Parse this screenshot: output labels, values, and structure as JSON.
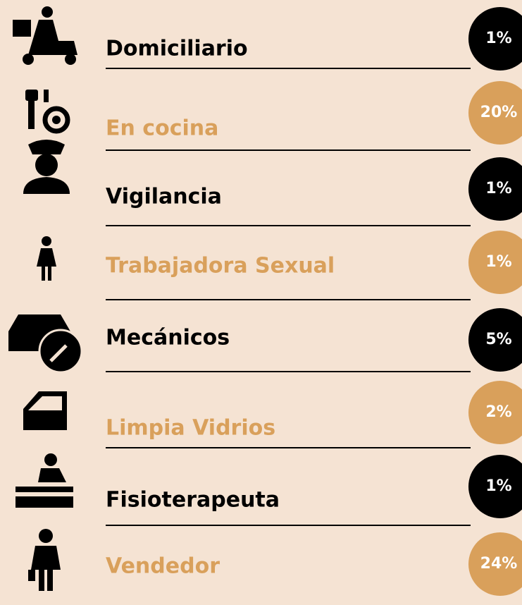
{
  "items": [
    {
      "label": "Domiciliario",
      "percent": "1%",
      "tone": "dark"
    },
    {
      "label": "En cocina",
      "percent": "20%",
      "tone": "light"
    },
    {
      "label": "Vigilancia",
      "percent": "1%",
      "tone": "dark"
    },
    {
      "label": "Trabajadora Sexual",
      "percent": "1%",
      "tone": "light"
    },
    {
      "label": "Mecánicos",
      "percent": "5%",
      "tone": "dark"
    },
    {
      "label": "Limpia Vidrios",
      "percent": "2%",
      "tone": "light"
    },
    {
      "label": "Fisioterapeuta",
      "percent": "1%",
      "tone": "dark"
    },
    {
      "label": "Vendedor",
      "percent": "24%",
      "tone": "light"
    }
  ]
}
